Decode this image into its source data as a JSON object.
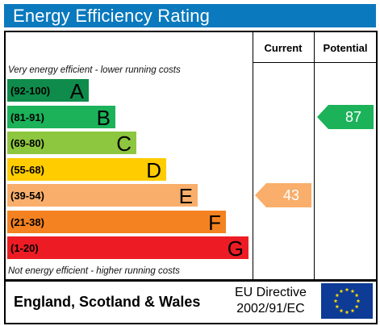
{
  "title": "Energy Efficiency Rating",
  "columns": {
    "current": "Current",
    "potential": "Potential"
  },
  "top_note": "Very energy efficient - lower running costs",
  "bottom_note": "Not energy efficient - higher running costs",
  "bands": [
    {
      "range": "(92-100)",
      "letter": "A",
      "color": "#0f8c4b"
    },
    {
      "range": "(81-91)",
      "letter": "B",
      "color": "#1bb25a"
    },
    {
      "range": "(69-80)",
      "letter": "C",
      "color": "#8dc63f"
    },
    {
      "range": "(55-68)",
      "letter": "D",
      "color": "#ffcc00"
    },
    {
      "range": "(39-54)",
      "letter": "E",
      "color": "#f9ae6b"
    },
    {
      "range": "(21-38)",
      "letter": "F",
      "color": "#f58220"
    },
    {
      "range": "(1-20)",
      "letter": "G",
      "color": "#ed1c24"
    }
  ],
  "current_rating": {
    "value": "43",
    "band": "E",
    "color": "#f9ae6b"
  },
  "potential_rating": {
    "value": "87",
    "band": "B",
    "color": "#1bb25a"
  },
  "footer": {
    "region": "England, Scotland & Wales",
    "directive_line1": "EU Directive",
    "directive_line2": "2002/91/EC"
  },
  "colors": {
    "title_bar": "#0a79bd",
    "eu_flag": "#0d3b96",
    "eu_stars": "#ffdd00"
  }
}
